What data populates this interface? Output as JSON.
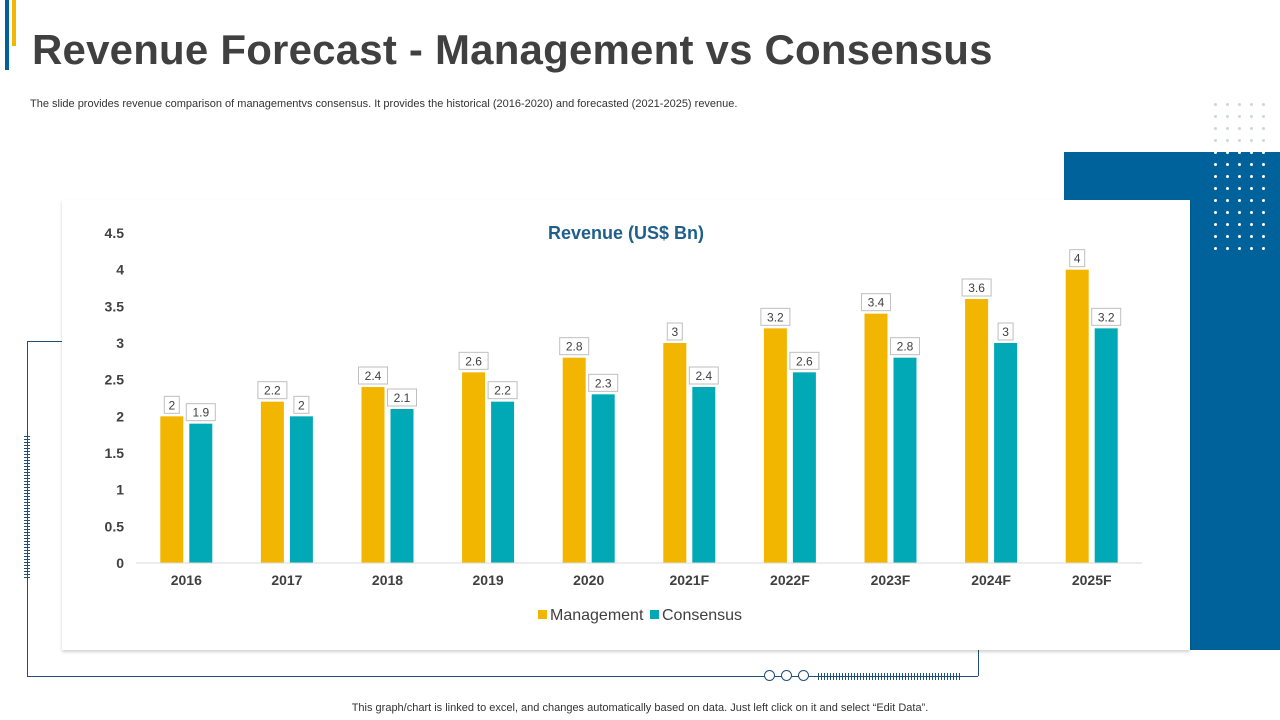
{
  "slide": {
    "title": "Revenue Forecast - Management vs Consensus",
    "subtitle": "The slide provides revenue comparison of managementvs consensus. It provides the historical (2016-2020) and forecasted (2021-2025) revenue.",
    "footer": "This graph/chart is linked to excel,  and changes automatically based on data. Just left click on it and select “Edit Data”."
  },
  "colors": {
    "management": "#f2b600",
    "consensus": "#00a9b5",
    "title_chart": "#1f5f8b",
    "accent_blue": "#00629b"
  },
  "chart_data": {
    "type": "bar",
    "title": "Revenue (US$ Bn)",
    "categories": [
      "2016",
      "2017",
      "2018",
      "2019",
      "2020",
      "2021F",
      "2022F",
      "2023F",
      "2024F",
      "2025F"
    ],
    "series": [
      {
        "name": "Management",
        "values": [
          2,
          2.2,
          2.4,
          2.6,
          2.8,
          3,
          3.2,
          3.4,
          3.6,
          4
        ]
      },
      {
        "name": "Consensus",
        "values": [
          1.9,
          2,
          2.1,
          2.2,
          2.3,
          2.4,
          2.6,
          2.8,
          3,
          3.2
        ]
      }
    ],
    "ylim": [
      0,
      4.5
    ],
    "yticks": [
      "0",
      "0.5",
      "1",
      "1.5",
      "2",
      "2.5",
      "3",
      "3.5",
      "4",
      "4.5"
    ],
    "xlabel": "",
    "ylabel": "",
    "grid": false,
    "legend": "bottom-center"
  }
}
